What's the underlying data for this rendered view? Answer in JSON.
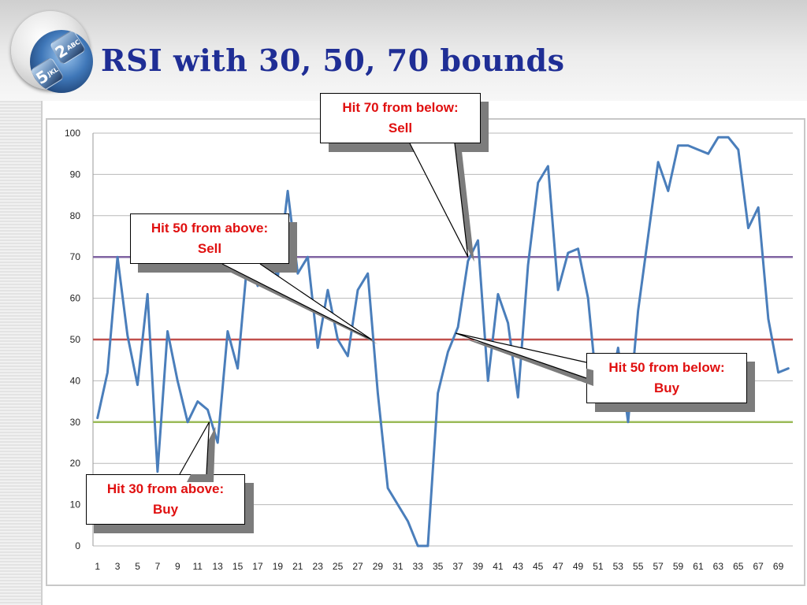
{
  "title": "RSI with 30, 50, 70 bounds",
  "logo": {
    "icon": "phone-keypad-logo-icon",
    "keys": [
      {
        "digit": "2",
        "letters": "ABC"
      },
      {
        "digit": "5",
        "letters": "JKL"
      }
    ]
  },
  "colors": {
    "title": "#1f2e95",
    "rsi_line": "#4a7ebb",
    "bound_70": "#8064a2",
    "bound_50": "#c0504d",
    "bound_30": "#9bbb59",
    "callout_text": "#e01010"
  },
  "callouts": {
    "hit70": {
      "line1": "Hit 70 from below:",
      "line2": "Sell"
    },
    "hit50_sell": {
      "line1": "Hit 50 from above:",
      "line2": "Sell"
    },
    "hit50_buy": {
      "line1": "Hit 50 from below:",
      "line2": "Buy"
    },
    "hit30": {
      "line1": "Hit 30 from above:",
      "line2": "Buy"
    }
  },
  "chart_data": {
    "type": "line",
    "title": "",
    "xlabel": "",
    "ylabel": "",
    "ylim": [
      0,
      100
    ],
    "yticks": [
      0,
      10,
      20,
      30,
      40,
      50,
      60,
      70,
      80,
      90,
      100
    ],
    "xticks": [
      "1",
      "3",
      "5",
      "7",
      "9",
      "11",
      "13",
      "15",
      "17",
      "19",
      "21",
      "23",
      "25",
      "27",
      "29",
      "31",
      "33",
      "35",
      "37",
      "39",
      "41",
      "43",
      "45",
      "47",
      "49",
      "51",
      "53",
      "55",
      "57",
      "59",
      "61",
      "63",
      "65",
      "67",
      "69"
    ],
    "grid": true,
    "legend": "none",
    "x": [
      1,
      2,
      3,
      4,
      5,
      6,
      7,
      8,
      9,
      10,
      11,
      12,
      13,
      14,
      15,
      16,
      17,
      18,
      19,
      20,
      21,
      22,
      23,
      24,
      25,
      26,
      27,
      28,
      29,
      30,
      31,
      32,
      33,
      34,
      35,
      36,
      37,
      38,
      39,
      40,
      41,
      42,
      43,
      44,
      45,
      46,
      47,
      48,
      49,
      50,
      51,
      52,
      53,
      54,
      55,
      56,
      57,
      58,
      59,
      60,
      61,
      62,
      63,
      64,
      65,
      66,
      67,
      68,
      69,
      70
    ],
    "series": [
      {
        "values": [
          31,
          42,
          70,
          51,
          39,
          61,
          18,
          52,
          40,
          30,
          35,
          33,
          25,
          52,
          43,
          70,
          63,
          72,
          65,
          86,
          66,
          70,
          48,
          62,
          50,
          46,
          62,
          66,
          37,
          14,
          10,
          6,
          0,
          0,
          37,
          47,
          53,
          69,
          74,
          40,
          61,
          54,
          36,
          68,
          88,
          92,
          62,
          71,
          72,
          60,
          35,
          35,
          48,
          30,
          57,
          75,
          93,
          86,
          97,
          97,
          96,
          95,
          99,
          99,
          96,
          77,
          82,
          55,
          42,
          43
        ]
      }
    ],
    "reference_lines": [
      {
        "y": 70
      },
      {
        "y": 50
      },
      {
        "y": 30
      }
    ]
  }
}
